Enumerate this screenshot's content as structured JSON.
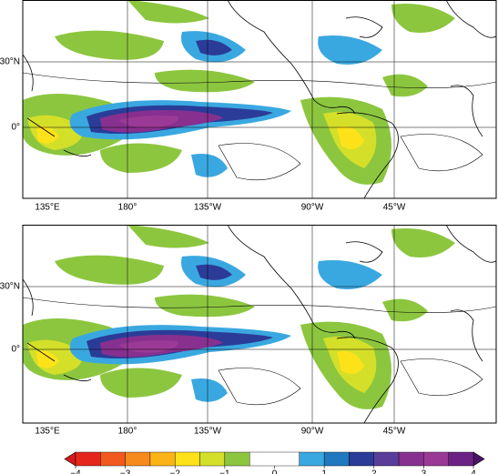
{
  "panels": [
    {
      "lon_labels": [
        "135°E",
        "180°",
        "135°W",
        "90°W",
        "45°W"
      ],
      "lat_labels": [
        "30°N",
        "0°"
      ]
    },
    {
      "lon_labels": [
        "135°E",
        "180°",
        "135°W",
        "90°W",
        "45°W"
      ],
      "lat_labels": [
        "30°N",
        "0°"
      ]
    }
  ],
  "colorbar": {
    "bounds": [
      -4,
      -3.5,
      -3,
      -2.5,
      -2,
      -1.5,
      -1,
      -0.5,
      0.5,
      1,
      1.5,
      2,
      2.5,
      3,
      3.5,
      4
    ],
    "colors": [
      "#e4261c",
      "#f2591f",
      "#f78a1d",
      "#fbb317",
      "#fde21a",
      "#d4df2a",
      "#8cc63f",
      "#ffffff",
      "#3aa8e0",
      "#1f78c0",
      "#2b3c98",
      "#5a3d99",
      "#87308f",
      "#9b3a96",
      "#6c2285"
    ],
    "extend_colors": [
      "#d7191c",
      "#4a1465"
    ],
    "ticks": [
      {
        "value": -4,
        "label": "−4"
      },
      {
        "value": -3,
        "label": "−3"
      },
      {
        "value": -2,
        "label": "−2"
      },
      {
        "value": -1,
        "label": "−1"
      },
      0,
      1,
      2,
      3,
      4
    ]
  }
}
